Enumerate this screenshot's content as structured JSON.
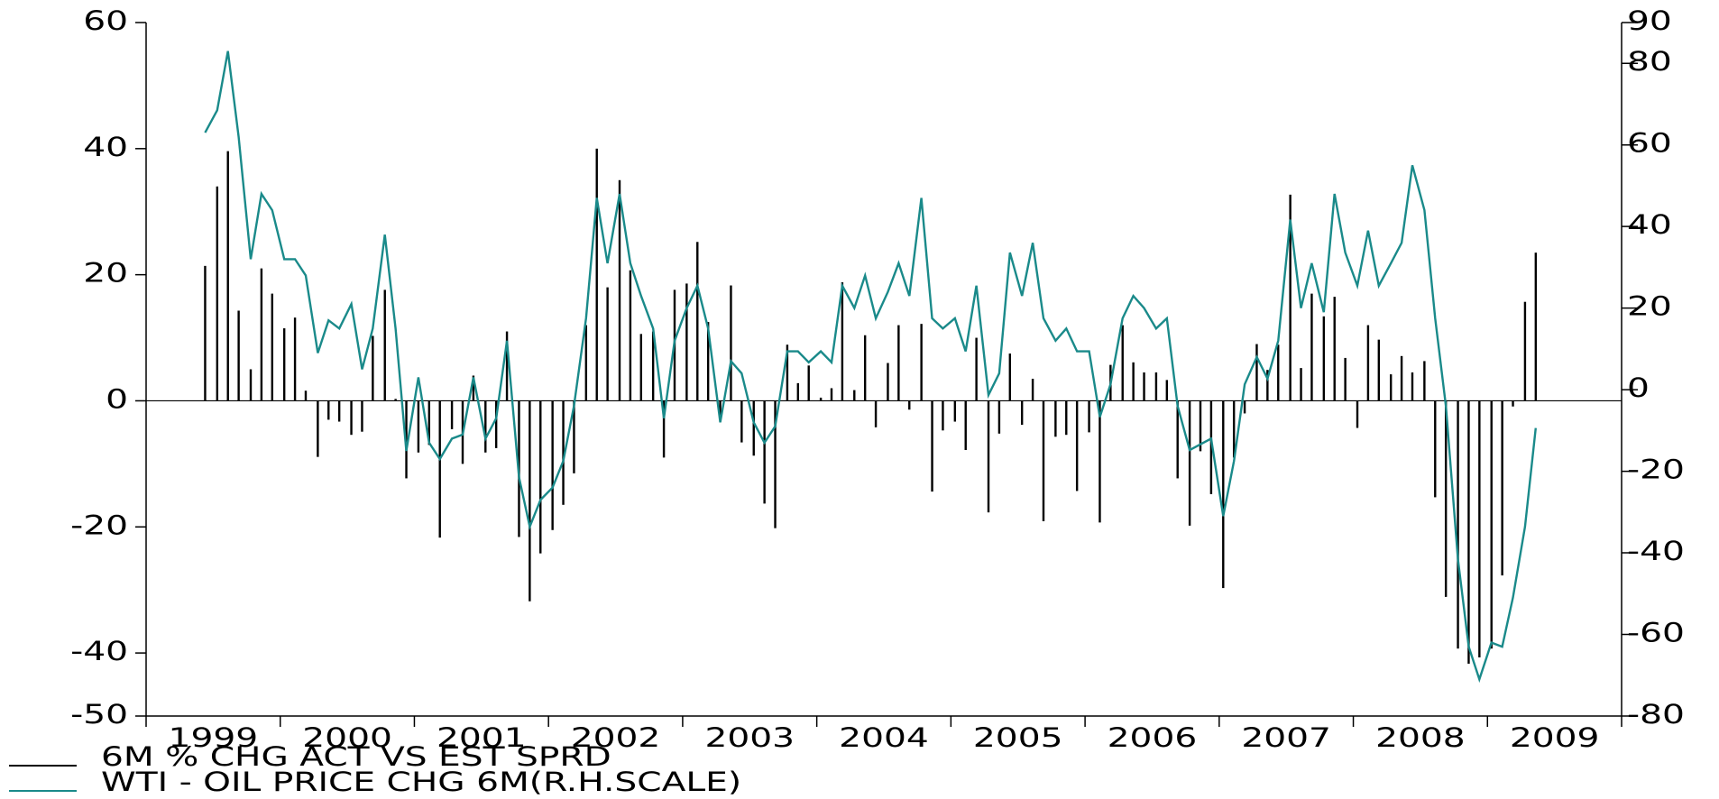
{
  "chart_data": {
    "type": "bar-line",
    "categories": [
      "1999",
      "2000",
      "2001",
      "2002",
      "2003",
      "2004",
      "2005",
      "2006",
      "2007",
      "2008",
      "2009"
    ],
    "xlim": [
      1999,
      2010
    ],
    "xticks": [
      1999,
      2000,
      2001,
      2002,
      2003,
      2004,
      2005,
      2006,
      2007,
      2008,
      2009,
      2010
    ],
    "ylim": [
      -50,
      60
    ],
    "yticks": [
      -50,
      -40,
      -20,
      0,
      20,
      40,
      60
    ],
    "y2lim": [
      -80,
      90
    ],
    "y2ticks": [
      -80,
      -60,
      -40,
      -20,
      0,
      20,
      40,
      60,
      80,
      90
    ],
    "x": [
      1999.44,
      1999.53,
      1999.61,
      1999.69,
      1999.78,
      1999.86,
      1999.94,
      2000.03,
      2000.11,
      2000.19,
      2000.28,
      2000.36,
      2000.44,
      2000.53,
      2000.61,
      2000.69,
      2000.78,
      2000.86,
      2000.94,
      2001.03,
      2001.11,
      2001.19,
      2001.28,
      2001.36,
      2001.44,
      2001.53,
      2001.61,
      2001.69,
      2001.78,
      2001.86,
      2001.94,
      2002.03,
      2002.11,
      2002.19,
      2002.28,
      2002.36,
      2002.44,
      2002.53,
      2002.61,
      2002.69,
      2002.78,
      2002.86,
      2002.94,
      2003.03,
      2003.11,
      2003.19,
      2003.28,
      2003.36,
      2003.44,
      2003.53,
      2003.61,
      2003.69,
      2003.78,
      2003.86,
      2003.94,
      2004.03,
      2004.11,
      2004.19,
      2004.28,
      2004.36,
      2004.44,
      2004.53,
      2004.61,
      2004.69,
      2004.78,
      2004.86,
      2004.94,
      2005.03,
      2005.11,
      2005.19,
      2005.28,
      2005.36,
      2005.44,
      2005.53,
      2005.61,
      2005.69,
      2005.78,
      2005.86,
      2005.94,
      2006.03,
      2006.11,
      2006.19,
      2006.28,
      2006.36,
      2006.44,
      2006.53,
      2006.61,
      2006.69,
      2006.78,
      2006.86,
      2006.94,
      2007.03,
      2007.11,
      2007.19,
      2007.28,
      2007.36,
      2007.44,
      2007.53,
      2007.61,
      2007.69,
      2007.78,
      2007.86,
      2007.94,
      2008.03,
      2008.11,
      2008.19,
      2008.28,
      2008.36,
      2008.44,
      2008.53,
      2008.61,
      2008.69,
      2008.78,
      2008.86,
      2008.94,
      2009.03,
      2009.11,
      2009.19,
      2009.28,
      2009.36
    ],
    "series": [
      {
        "name": "6M % CHG ACT VS EST SPRD",
        "type": "bar",
        "color": "#000000",
        "values": [
          21.4,
          34,
          39.6,
          14.3,
          5,
          21,
          17,
          11.5,
          13.2,
          1.6,
          -8.9,
          -3,
          -3.3,
          -5.4,
          -4.9,
          10.3,
          17.6,
          0.3,
          -12.3,
          -8.2,
          -7,
          -21.7,
          -4.5,
          -10,
          4,
          -8.2,
          -7.5,
          11,
          -21.6,
          -31.8,
          -24.2,
          -20.5,
          -16.5,
          -11.5,
          12,
          40,
          18,
          35,
          20.7,
          10.6,
          11,
          -9,
          17.6,
          18.6,
          25.2,
          12.5,
          -2.4,
          18.3,
          -6.6,
          -8.7,
          -16.3,
          -20.2,
          8.9,
          2.8,
          5.6,
          0.5,
          2,
          18.8,
          1.7,
          10.4,
          -4.2,
          6,
          12,
          -1.4,
          12.2,
          -14.4,
          -4.7,
          -3.3,
          -7.8,
          10,
          -17.7,
          -5.2,
          7.5,
          -3.8,
          3.5,
          -19.1,
          -5.7,
          -5.4,
          -14.3,
          -5,
          -19.3,
          5.7,
          12,
          6.1,
          4.5,
          4.5,
          3.3,
          -12.3,
          -19.8,
          -8,
          -14.8,
          -29.7,
          -9,
          -2,
          9,
          4.9,
          8.9,
          32.7,
          5.2,
          17,
          13.4,
          16.5,
          6.8,
          -4.3,
          12,
          9.7,
          4.2,
          7.1,
          4.5,
          6.3,
          -15.3,
          -31.1,
          -39.3,
          -41.7,
          -40.7,
          -39.3,
          -27.7,
          -0.9,
          15.7,
          23.5
        ]
      },
      {
        "name": "WTI - OIL PRICE CHG 6M(R.H.SCALE)",
        "type": "line",
        "axis": "y2",
        "color": "#1a8a8a",
        "values": [
          63,
          68.5,
          83,
          62,
          32,
          48,
          44,
          32,
          32,
          28,
          9,
          17,
          15,
          21,
          5,
          15,
          38,
          15,
          -15,
          3,
          -13,
          -17,
          -12,
          -11,
          3,
          -12,
          -7,
          12,
          -21.5,
          -33.6,
          -27,
          -24,
          -17.5,
          -4,
          17.5,
          47,
          31,
          48,
          31,
          23,
          15,
          -7,
          12,
          20,
          25.5,
          15,
          -8,
          7,
          4,
          -8,
          -13,
          -9,
          9.4,
          9.4,
          6.7,
          9.4,
          6.7,
          25.5,
          20,
          28,
          17.5,
          24,
          31,
          23,
          47,
          17.5,
          15,
          17.5,
          9.4,
          25.5,
          -1.3,
          4,
          33.6,
          23,
          36,
          17.5,
          12,
          15,
          9.4,
          9.4,
          -6.7,
          1.3,
          17.5,
          23,
          20,
          15,
          17.5,
          -4,
          -14.8,
          -13.4,
          -12,
          -31,
          -17.5,
          1.3,
          8,
          2.7,
          12,
          41.7,
          20,
          31,
          19,
          48,
          33.6,
          25.5,
          39,
          25.5,
          31,
          36,
          55,
          44,
          17.5,
          -4,
          -41.7,
          -63,
          -71,
          -62,
          -63,
          -51,
          -33.6,
          -9.4
        ]
      }
    ]
  }
}
